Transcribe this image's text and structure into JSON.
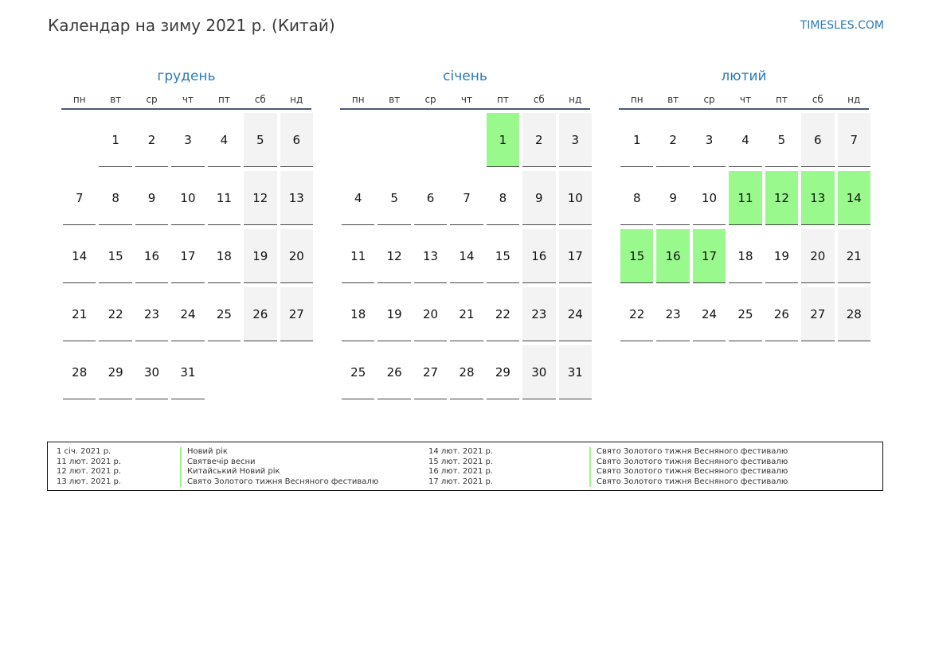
{
  "header": {
    "title": "Календар на зиму 2021 р. (Китай)",
    "site": "TIMESLES.COM"
  },
  "colors": {
    "accent": "#2a7ab8",
    "holiday": "#99f98d",
    "weekend": "#f3f3f3"
  },
  "weekdays": [
    "пн",
    "вт",
    "ср",
    "чт",
    "пт",
    "сб",
    "нд"
  ],
  "months": [
    {
      "name": "грудень",
      "first_weekday": 1,
      "days": 31,
      "holidays": []
    },
    {
      "name": "січень",
      "first_weekday": 4,
      "days": 31,
      "holidays": [
        1
      ]
    },
    {
      "name": "лютий",
      "first_weekday": 0,
      "days": 28,
      "holidays": [
        11,
        12,
        13,
        14,
        15,
        16,
        17
      ]
    }
  ],
  "legend": {
    "left": [
      {
        "date": "1 січ. 2021 р.",
        "name": "Новий рік"
      },
      {
        "date": "11 лют. 2021 р.",
        "name": "Святвечір весни"
      },
      {
        "date": "12 лют. 2021 р.",
        "name": "Китайський Новий рік"
      },
      {
        "date": "13 лют. 2021 р.",
        "name": "Свято Золотого тижня Весняного фестивалю"
      }
    ],
    "right": [
      {
        "date": "14 лют. 2021 р.",
        "name": "Свято Золотого тижня Весняного фестивалю"
      },
      {
        "date": "15 лют. 2021 р.",
        "name": "Свято Золотого тижня Весняного фестивалю"
      },
      {
        "date": "16 лют. 2021 р.",
        "name": "Свято Золотого тижня Весняного фестивалю"
      },
      {
        "date": "17 лют. 2021 р.",
        "name": "Свято Золотого тижня Весняного фестивалю"
      }
    ]
  }
}
